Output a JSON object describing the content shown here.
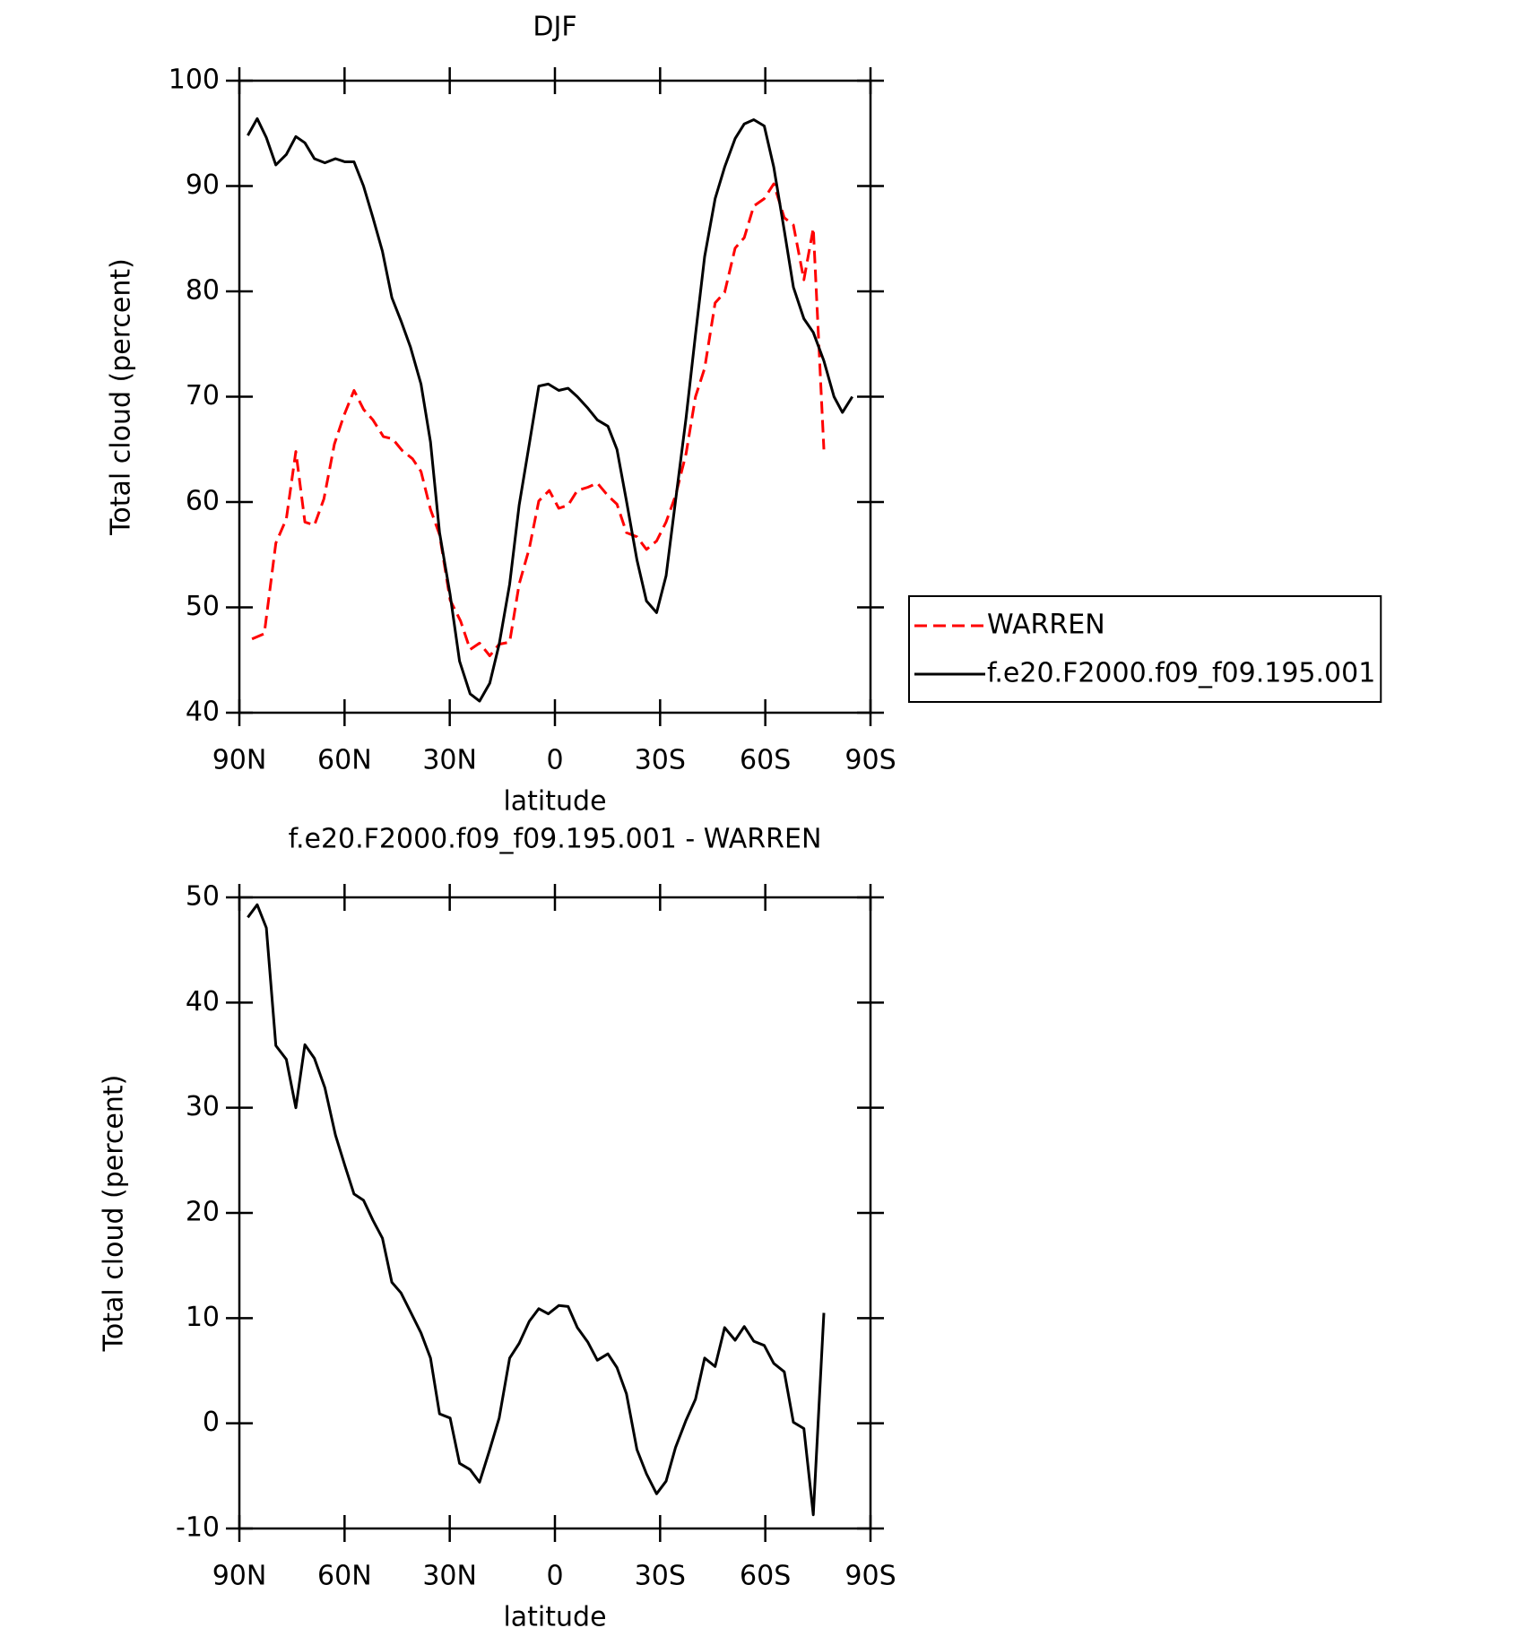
{
  "chart_data": [
    {
      "type": "line",
      "title": "DJF",
      "xlabel": "latitude",
      "ylabel": "Total cloud (percent)",
      "xlim": [
        90,
        -90
      ],
      "xticks": [
        {
          "value": 90,
          "label": "90N"
        },
        {
          "value": 60,
          "label": "60N"
        },
        {
          "value": 30,
          "label": "30N"
        },
        0,
        {
          "value": -30,
          "label": "30S"
        },
        {
          "value": -60,
          "label": "60S"
        },
        {
          "value": -90,
          "label": "90S"
        }
      ],
      "ylim": [
        40,
        100
      ],
      "yticks": [
        40,
        50,
        60,
        70,
        80,
        90,
        100
      ],
      "legend": "right",
      "series": [
        {
          "name": "WARREN",
          "color": "#ff0000",
          "line_style": "dashed",
          "x": [
            86.4,
            82.9,
            79.6,
            76.6,
            73.9,
            71.3,
            68.6,
            65.9,
            62.9,
            60.2,
            57.3,
            54.6,
            51.9,
            48.9,
            46.3,
            43.6,
            40.6,
            38.2,
            35.5,
            32.9,
            29.9,
            26.9,
            24.2,
            21.5,
            18.6,
            15.9,
            12.9,
            10.2,
            7.3,
            4.6,
            1.6,
            -1.1,
            -3.75,
            -6.4,
            -9.4,
            -12.1,
            -15.1,
            -17.7,
            -20.4,
            -23.4,
            -26.1,
            -29.0,
            -31.7,
            -34.4,
            -37.4,
            -40.1,
            -42.7,
            -45.7,
            -48.4,
            -51.4,
            -54.0,
            -56.7,
            -59.7,
            -62.4,
            -65.4,
            -68.0,
            -71.0,
            -73.7,
            -76.7
          ],
          "values": [
            47.0,
            47.5,
            56.1,
            58.4,
            64.8,
            58.1,
            57.8,
            60.3,
            65.5,
            68.2,
            70.6,
            68.8,
            67.8,
            66.2,
            66.0,
            64.9,
            64.1,
            62.9,
            59.3,
            56.9,
            50.7,
            48.7,
            46.0,
            46.6,
            45.4,
            46.5,
            46.7,
            52.2,
            55.6,
            60.1,
            61.1,
            59.4,
            59.7,
            61.1,
            61.4,
            61.8,
            60.6,
            59.8,
            57.1,
            56.7,
            55.5,
            56.3,
            58.1,
            60.6,
            64.6,
            70.0,
            72.7,
            78.9,
            79.9,
            84.1,
            85.1,
            88.1,
            88.8,
            90.2,
            87.0,
            86.3,
            81.1,
            86.0,
            65.0
          ]
        },
        {
          "name": "f.e20.F2000.f09_f09.195.001",
          "color": "#000000",
          "line_style": "solid",
          "x": [
            87.6,
            84.9,
            82.3,
            79.6,
            76.6,
            73.9,
            71.3,
            68.6,
            65.6,
            62.6,
            59.9,
            57.3,
            54.6,
            51.9,
            49.2,
            46.5,
            43.9,
            41.2,
            38.2,
            35.5,
            32.9,
            29.9,
            27.2,
            24.2,
            21.5,
            18.6,
            15.9,
            12.9,
            10.2,
            7.3,
            4.6,
            1.9,
            -1.1,
            -3.75,
            -6.4,
            -9.4,
            -12.1,
            -15.1,
            -17.7,
            -20.4,
            -23.4,
            -26.1,
            -29.0,
            -31.7,
            -34.4,
            -37.4,
            -40.1,
            -42.7,
            -45.7,
            -48.4,
            -51.4,
            -54.0,
            -56.7,
            -59.7,
            -62.4,
            -65.4,
            -68.0,
            -71.0,
            -73.7,
            -76.7,
            -79.6,
            -82.0,
            -84.8
          ],
          "values": [
            94.8,
            96.4,
            94.6,
            92.0,
            93.0,
            94.7,
            94.1,
            92.6,
            92.2,
            92.6,
            92.3,
            92.3,
            90.0,
            87.0,
            83.8,
            79.4,
            77.2,
            74.7,
            71.2,
            65.7,
            57.1,
            51.2,
            44.9,
            41.8,
            41.1,
            42.8,
            46.5,
            52.2,
            59.7,
            65.5,
            71.0,
            71.2,
            70.6,
            70.8,
            70.0,
            68.9,
            67.8,
            67.2,
            65.0,
            60.1,
            54.5,
            50.6,
            49.5,
            53.0,
            60.1,
            68.0,
            75.9,
            83.3,
            88.8,
            91.8,
            94.5,
            95.9,
            96.3,
            95.7,
            91.8,
            85.8,
            80.4,
            77.4,
            76.1,
            73.4,
            70.0,
            68.5,
            70.0
          ]
        }
      ]
    },
    {
      "type": "line",
      "title": "f.e20.F2000.f09_f09.195.001 - WARREN",
      "xlabel": "latitude",
      "ylabel": "Total cloud (percent)",
      "xlim": [
        90,
        -90
      ],
      "xticks": [
        {
          "value": 90,
          "label": "90N"
        },
        {
          "value": 60,
          "label": "60N"
        },
        {
          "value": 30,
          "label": "30N"
        },
        0,
        {
          "value": -30,
          "label": "30S"
        },
        {
          "value": -60,
          "label": "60S"
        },
        {
          "value": -90,
          "label": "90S"
        }
      ],
      "ylim": [
        -10,
        50
      ],
      "yticks": [
        -10,
        0,
        10,
        20,
        30,
        40,
        50
      ],
      "series": [
        {
          "color": "#000000",
          "line_style": "solid",
          "x": [
            87.6,
            84.9,
            82.3,
            79.6,
            76.6,
            73.9,
            71.3,
            68.6,
            65.6,
            62.6,
            59.9,
            57.3,
            54.6,
            51.9,
            49.2,
            46.5,
            43.9,
            41.2,
            38.2,
            35.5,
            32.9,
            29.9,
            27.2,
            24.2,
            21.5,
            18.6,
            15.9,
            12.9,
            10.2,
            7.3,
            4.6,
            1.9,
            -1.1,
            -3.75,
            -6.4,
            -9.4,
            -12.1,
            -15.1,
            -17.7,
            -20.4,
            -23.4,
            -26.1,
            -29.0,
            -31.7,
            -34.4,
            -37.4,
            -40.1,
            -42.7,
            -45.7,
            -48.4,
            -51.4,
            -54.0,
            -56.7,
            -59.7,
            -62.4,
            -65.4,
            -68.0,
            -71.0,
            -73.7,
            -76.7
          ],
          "values": [
            48.1,
            49.3,
            47.1,
            35.9,
            34.6,
            30.0,
            36.0,
            34.7,
            31.9,
            27.4,
            24.5,
            21.8,
            21.2,
            19.3,
            17.6,
            13.4,
            12.4,
            10.6,
            8.6,
            6.2,
            0.9,
            0.5,
            -3.8,
            -4.4,
            -5.6,
            -2.5,
            0.5,
            6.2,
            7.6,
            9.7,
            10.9,
            10.4,
            11.2,
            11.1,
            9.1,
            7.7,
            6.0,
            6.6,
            5.3,
            2.8,
            -2.5,
            -4.8,
            -6.7,
            -5.5,
            -2.3,
            0.3,
            2.3,
            6.2,
            5.4,
            9.1,
            7.9,
            9.2,
            7.8,
            7.4,
            5.7,
            4.9,
            0.1,
            -0.5,
            -8.7,
            10.5
          ]
        }
      ]
    }
  ]
}
